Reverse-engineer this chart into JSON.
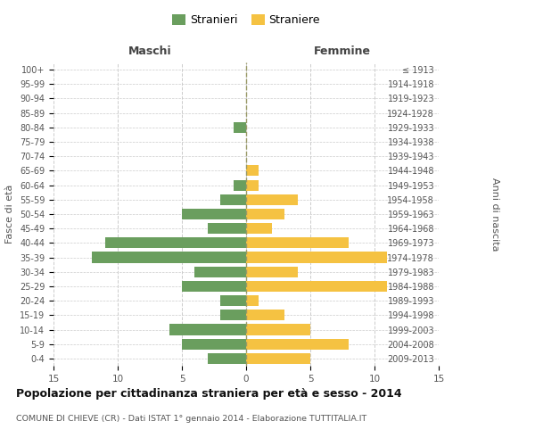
{
  "age_groups": [
    "100+",
    "95-99",
    "90-94",
    "85-89",
    "80-84",
    "75-79",
    "70-74",
    "65-69",
    "60-64",
    "55-59",
    "50-54",
    "45-49",
    "40-44",
    "35-39",
    "30-34",
    "25-29",
    "20-24",
    "15-19",
    "10-14",
    "5-9",
    "0-4"
  ],
  "birth_years": [
    "≤ 1913",
    "1914-1918",
    "1919-1923",
    "1924-1928",
    "1929-1933",
    "1934-1938",
    "1939-1943",
    "1944-1948",
    "1949-1953",
    "1954-1958",
    "1959-1963",
    "1964-1968",
    "1969-1973",
    "1974-1978",
    "1979-1983",
    "1984-1988",
    "1989-1993",
    "1994-1998",
    "1999-2003",
    "2004-2008",
    "2009-2013"
  ],
  "males": [
    0,
    0,
    0,
    0,
    1,
    0,
    0,
    0,
    1,
    2,
    5,
    3,
    11,
    12,
    4,
    5,
    2,
    2,
    6,
    5,
    3
  ],
  "females": [
    0,
    0,
    0,
    0,
    0,
    0,
    0,
    1,
    1,
    4,
    3,
    2,
    8,
    11,
    4,
    11,
    1,
    3,
    5,
    8,
    5
  ],
  "male_color": "#6a9e5e",
  "female_color": "#f5c242",
  "title": "Popolazione per cittadinanza straniera per età e sesso - 2014",
  "subtitle": "COMUNE DI CHIEVE (CR) - Dati ISTAT 1° gennaio 2014 - Elaborazione TUTTITALIA.IT",
  "xlabel_left": "Maschi",
  "xlabel_right": "Femmine",
  "ylabel_left": "Fasce di età",
  "ylabel_right": "Anni di nascita",
  "xlim": 15,
  "legend_stranieri": "Stranieri",
  "legend_straniere": "Straniere",
  "background_color": "#ffffff",
  "grid_color": "#cccccc"
}
